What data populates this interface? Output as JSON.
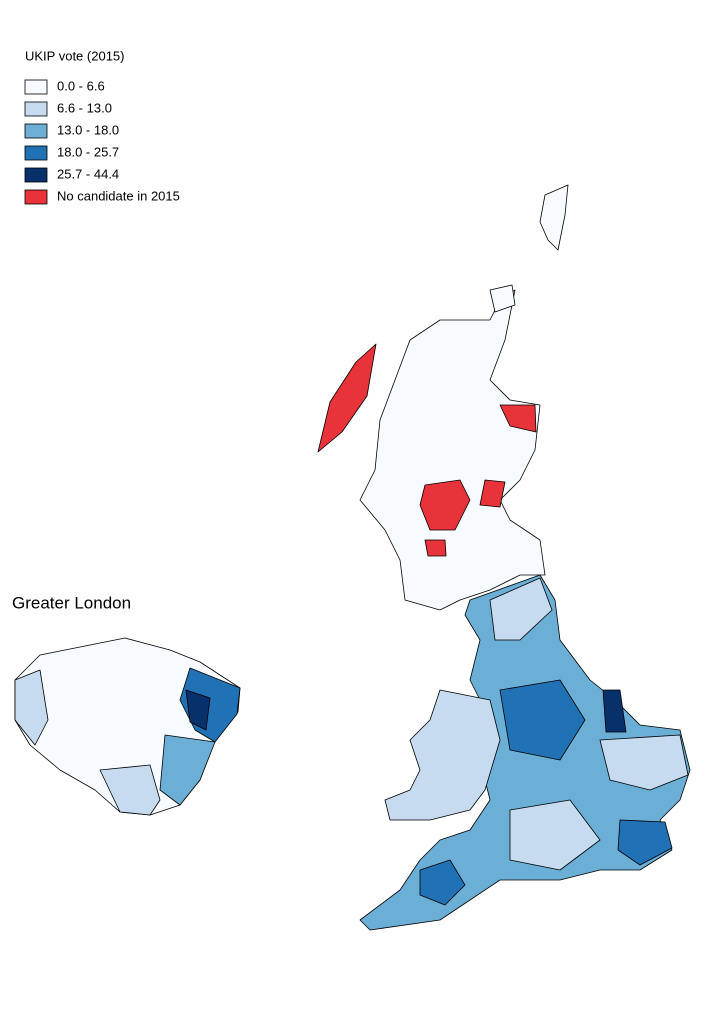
{
  "legend": {
    "title": "UKIP vote (2015)",
    "items": [
      {
        "label": "0.0 - 6.6",
        "color": "#f7fbff"
      },
      {
        "label": "6.6 - 13.0",
        "color": "#c6dbef"
      },
      {
        "label": "13.0 - 18.0",
        "color": "#6baed6"
      },
      {
        "label": "18.0 - 25.7",
        "color": "#2171b5"
      },
      {
        "label": "25.7 - 44.4",
        "color": "#08306b"
      },
      {
        "label": "No candidate in 2015",
        "color": "#e8333a"
      }
    ]
  },
  "inset": {
    "title": "Greater London"
  }
}
